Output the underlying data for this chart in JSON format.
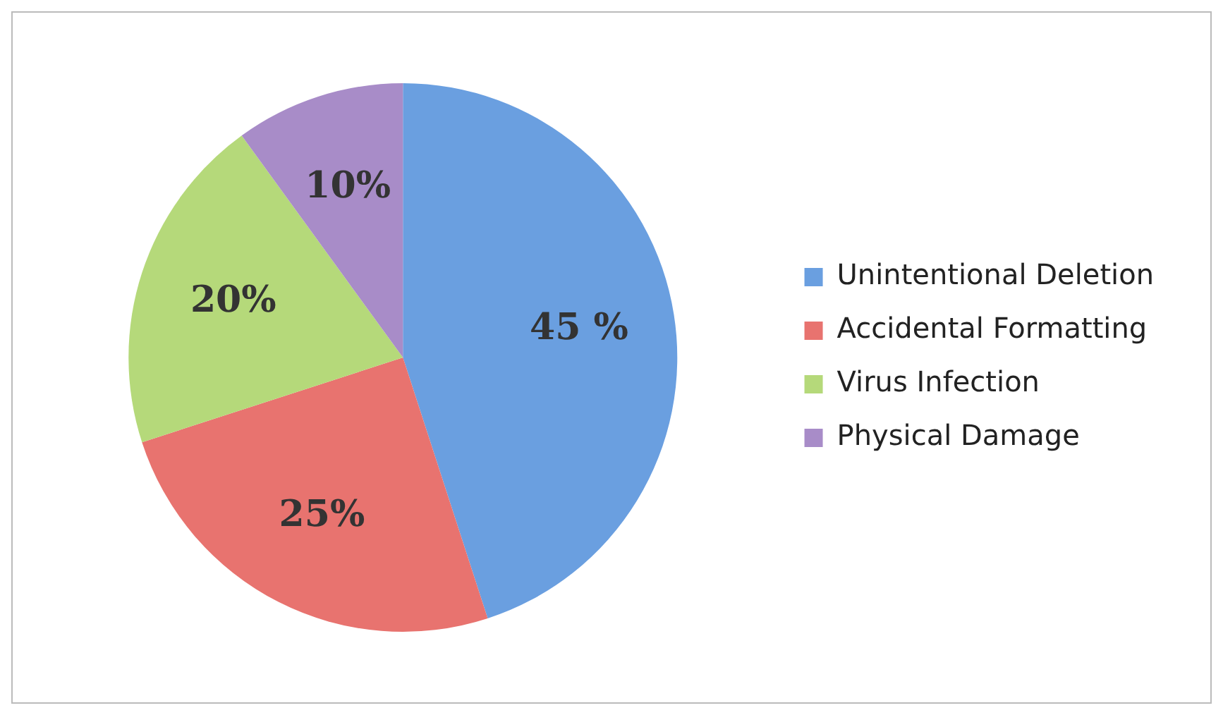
{
  "chart_data": {
    "type": "pie",
    "categories": [
      "Unintentional Deletion",
      "Accidental Formatting",
      "Virus Infection",
      "Physical Damage"
    ],
    "values": [
      45,
      25,
      20,
      10
    ],
    "value_labels": [
      "45 %",
      "25%",
      "20%",
      "10%"
    ],
    "colors": [
      "#6a9fe0",
      "#e8736f",
      "#b5d97a",
      "#a88cc8"
    ],
    "legend": "right"
  }
}
